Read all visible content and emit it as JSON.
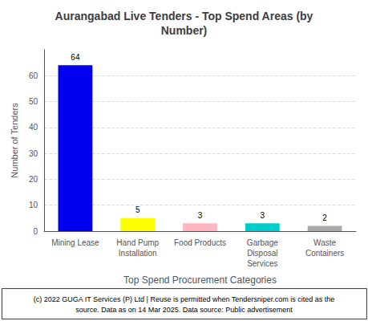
{
  "chart_data": {
    "type": "bar",
    "title": "Aurangabad Live Tenders - Top Spend Areas (by\nNumber)",
    "categories": [
      "Mining Lease",
      "Hand Pump\nInstallation",
      "Food Products",
      "Garbage\nDisposal\nServices",
      "Waste\nContainers"
    ],
    "values": [
      64,
      5,
      3,
      3,
      2
    ],
    "colors": [
      "#0000EE",
      "#FFFF00",
      "#FFB6C1",
      "#00CCCC",
      "#AAAAAA"
    ],
    "xlabel": "Top Spend Procurement Categories",
    "ylabel": "Number of Tenders",
    "ylim": [
      0,
      70
    ],
    "yticks": [
      0,
      10,
      20,
      30,
      40,
      50,
      60
    ],
    "grid": true,
    "data_labels": true,
    "annotations": [
      "(c) 2022 GUGA IT Services (P) Ltd | Reuse is permitted when Tendersniper.com is cited as the\nsource. Data as on 14 Mar 2025. Data source: Public advertisement"
    ]
  }
}
